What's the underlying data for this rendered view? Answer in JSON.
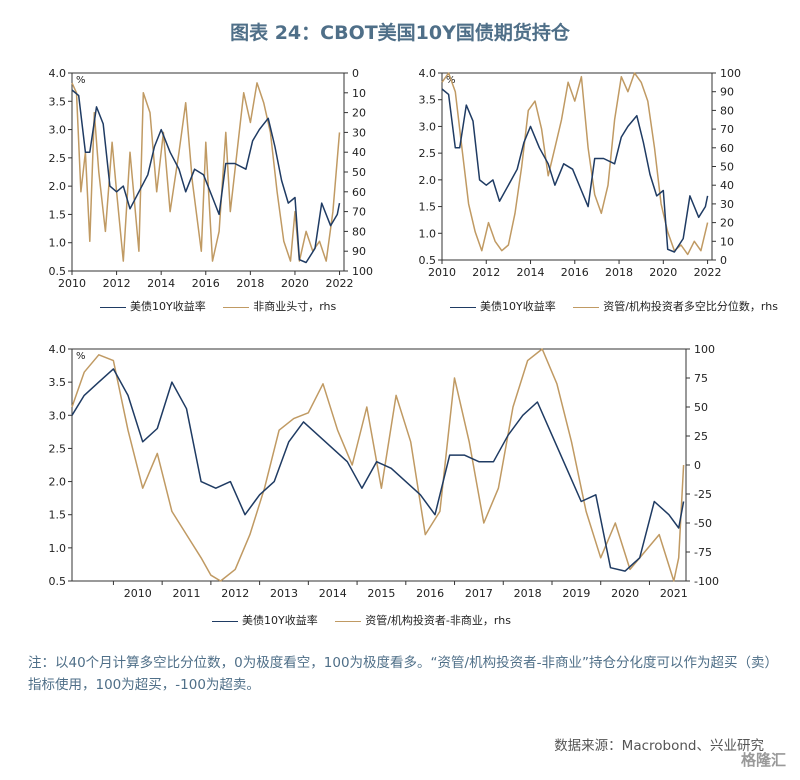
{
  "title": "图表 24：CBOT美国10Y国债期货持仓",
  "note": "注：以40个月计算多空比分位数，0为极度看空，100为极度看多。“资管/机构投资者-非商业”持仓分化度可以作为超买（卖）指标使用，100为超买，-100为超卖。",
  "source": "数据来源：Macrobond、兴业研究",
  "watermark": "格隆汇",
  "colors": {
    "navy": "#1f3b63",
    "tan": "#c09a63"
  },
  "chart_data": [
    {
      "type": "line",
      "id": "chart1",
      "pct_label": "%",
      "ylim": [
        0.5,
        4.0
      ],
      "y_ticks": [
        "0.5",
        "1.0",
        "1.5",
        "2.0",
        "2.5",
        "3.0",
        "3.5",
        "4.0"
      ],
      "y2lim": [
        0,
        100
      ],
      "y2_inverted": true,
      "y2_ticks": [
        "0",
        "10",
        "20",
        "30",
        "40",
        "50",
        "60",
        "70",
        "80",
        "90",
        "100"
      ],
      "xlim": [
        2010,
        2022.2
      ],
      "x_ticks": [
        "2010",
        "2012",
        "2014",
        "2016",
        "2018",
        "2020",
        "2022"
      ],
      "series": [
        {
          "name": "美债10Y收益率",
          "axis": "left",
          "color": "#1f3b63",
          "x": [
            2010.0,
            2010.3,
            2010.6,
            2010.8,
            2011.1,
            2011.4,
            2011.7,
            2012.0,
            2012.3,
            2012.6,
            2013.0,
            2013.4,
            2013.7,
            2014.0,
            2014.4,
            2014.8,
            2015.1,
            2015.5,
            2015.9,
            2016.3,
            2016.6,
            2016.9,
            2017.3,
            2017.8,
            2018.1,
            2018.4,
            2018.8,
            2019.1,
            2019.4,
            2019.7,
            2020.0,
            2020.2,
            2020.5,
            2020.9,
            2021.2,
            2021.6,
            2021.9,
            2022.0
          ],
          "values": [
            3.7,
            3.6,
            2.6,
            2.6,
            3.4,
            3.1,
            2.0,
            1.9,
            2.0,
            1.6,
            1.9,
            2.2,
            2.7,
            3.0,
            2.6,
            2.3,
            1.9,
            2.3,
            2.2,
            1.8,
            1.5,
            2.4,
            2.4,
            2.3,
            2.8,
            3.0,
            3.2,
            2.7,
            2.1,
            1.7,
            1.8,
            0.7,
            0.65,
            0.9,
            1.7,
            1.3,
            1.5,
            1.7
          ]
        },
        {
          "name": "非商业头寸，rhs",
          "axis": "right",
          "color": "#c09a63",
          "x": [
            2010.0,
            2010.2,
            2010.4,
            2010.6,
            2010.8,
            2011.0,
            2011.2,
            2011.5,
            2011.8,
            2012.0,
            2012.3,
            2012.6,
            2013.0,
            2013.2,
            2013.5,
            2013.8,
            2014.1,
            2014.4,
            2014.8,
            2015.1,
            2015.4,
            2015.8,
            2016.0,
            2016.3,
            2016.6,
            2016.9,
            2017.1,
            2017.4,
            2017.7,
            2018.0,
            2018.3,
            2018.6,
            2018.9,
            2019.2,
            2019.5,
            2019.8,
            2020.0,
            2020.2,
            2020.5,
            2020.8,
            2021.1,
            2021.4,
            2021.7,
            2022.0
          ],
          "values": [
            5,
            10,
            60,
            40,
            85,
            20,
            50,
            80,
            35,
            60,
            95,
            40,
            90,
            10,
            20,
            60,
            30,
            70,
            40,
            15,
            55,
            90,
            35,
            95,
            80,
            30,
            70,
            40,
            10,
            25,
            5,
            15,
            30,
            60,
            85,
            95,
            70,
            95,
            80,
            90,
            85,
            95,
            70,
            30
          ]
        }
      ],
      "legend": [
        "美债10Y收益率",
        "非商业头寸，rhs"
      ]
    },
    {
      "type": "line",
      "id": "chart2",
      "pct_label": "%",
      "ylim": [
        0.5,
        4.0
      ],
      "y_ticks": [
        "0.5",
        "1.0",
        "1.5",
        "2.0",
        "2.5",
        "3.0",
        "3.5",
        "4.0"
      ],
      "y2lim": [
        0,
        100
      ],
      "y2_inverted": false,
      "y2_ticks": [
        "0",
        "10",
        "20",
        "30",
        "40",
        "50",
        "60",
        "70",
        "80",
        "90",
        "100"
      ],
      "xlim": [
        2010,
        2022.2
      ],
      "x_ticks": [
        "2010",
        "2012",
        "2014",
        "2016",
        "2018",
        "2020",
        "2022"
      ],
      "series": [
        {
          "name": "美债10Y收益率",
          "axis": "left",
          "color": "#1f3b63",
          "x": [
            2010.0,
            2010.3,
            2010.6,
            2010.8,
            2011.1,
            2011.4,
            2011.7,
            2012.0,
            2012.3,
            2012.6,
            2013.0,
            2013.4,
            2013.7,
            2014.0,
            2014.4,
            2014.8,
            2015.1,
            2015.5,
            2015.9,
            2016.3,
            2016.6,
            2016.9,
            2017.3,
            2017.8,
            2018.1,
            2018.4,
            2018.8,
            2019.1,
            2019.4,
            2019.7,
            2020.0,
            2020.2,
            2020.5,
            2020.9,
            2021.2,
            2021.6,
            2021.9,
            2022.0
          ],
          "values": [
            3.7,
            3.6,
            2.6,
            2.6,
            3.4,
            3.1,
            2.0,
            1.9,
            2.0,
            1.6,
            1.9,
            2.2,
            2.7,
            3.0,
            2.6,
            2.3,
            1.9,
            2.3,
            2.2,
            1.8,
            1.5,
            2.4,
            2.4,
            2.3,
            2.8,
            3.0,
            3.2,
            2.7,
            2.1,
            1.7,
            1.8,
            0.7,
            0.65,
            0.9,
            1.7,
            1.3,
            1.5,
            1.7
          ]
        },
        {
          "name": "资管/机构投资者多空比分位数，rhs",
          "axis": "right",
          "color": "#c09a63",
          "x": [
            2010.0,
            2010.3,
            2010.6,
            2010.9,
            2011.2,
            2011.5,
            2011.8,
            2012.1,
            2012.4,
            2012.7,
            2013.0,
            2013.3,
            2013.6,
            2013.9,
            2014.2,
            2014.5,
            2014.8,
            2015.1,
            2015.4,
            2015.7,
            2016.0,
            2016.3,
            2016.6,
            2016.9,
            2017.2,
            2017.5,
            2017.8,
            2018.1,
            2018.4,
            2018.7,
            2019.0,
            2019.3,
            2019.6,
            2019.9,
            2020.2,
            2020.5,
            2020.8,
            2021.1,
            2021.4,
            2021.7,
            2022.0
          ],
          "values": [
            95,
            100,
            90,
            60,
            30,
            15,
            5,
            20,
            10,
            5,
            8,
            25,
            50,
            80,
            85,
            70,
            45,
            60,
            75,
            95,
            85,
            98,
            60,
            35,
            25,
            40,
            75,
            98,
            90,
            100,
            95,
            85,
            60,
            30,
            15,
            5,
            8,
            3,
            10,
            5,
            20
          ]
        }
      ],
      "legend": [
        "美债10Y收益率",
        "资管/机构投资者多空比分位数，rhs"
      ]
    },
    {
      "type": "line",
      "id": "chart3",
      "pct_label": "%",
      "ylim": [
        0.5,
        4.0
      ],
      "y_ticks": [
        "0.5",
        "1.0",
        "1.5",
        "2.0",
        "2.5",
        "3.0",
        "3.5",
        "4.0"
      ],
      "y2lim": [
        -100,
        100
      ],
      "y2_inverted": false,
      "y2_ticks": [
        "-100",
        "-75",
        "-50",
        "-25",
        "0",
        "25",
        "50",
        "75",
        "100"
      ],
      "xlim": [
        2009.15,
        2021.75
      ],
      "x_ticks": [
        "2010",
        "2011",
        "2012",
        "2013",
        "2014",
        "2015",
        "2016",
        "2017",
        "2018",
        "2019",
        "2020",
        "2021"
      ],
      "series": [
        {
          "name": "美债10Y收益率",
          "axis": "left",
          "color": "#1f3b63",
          "x": [
            2009.15,
            2009.4,
            2009.7,
            2010.0,
            2010.3,
            2010.6,
            2010.9,
            2011.2,
            2011.5,
            2011.8,
            2012.1,
            2012.4,
            2012.7,
            2013.0,
            2013.3,
            2013.6,
            2013.9,
            2014.2,
            2014.5,
            2014.8,
            2015.1,
            2015.4,
            2015.7,
            2016.0,
            2016.3,
            2016.6,
            2016.9,
            2017.2,
            2017.5,
            2017.8,
            2018.1,
            2018.4,
            2018.7,
            2019.0,
            2019.3,
            2019.6,
            2019.9,
            2020.2,
            2020.5,
            2020.8,
            2021.1,
            2021.4,
            2021.6,
            2021.7
          ],
          "values": [
            3.0,
            3.3,
            3.5,
            3.7,
            3.3,
            2.6,
            2.8,
            3.5,
            3.1,
            2.0,
            1.9,
            2.0,
            1.5,
            1.8,
            2.0,
            2.6,
            2.9,
            2.7,
            2.5,
            2.3,
            1.9,
            2.3,
            2.2,
            2.0,
            1.8,
            1.5,
            2.4,
            2.4,
            2.3,
            2.3,
            2.7,
            3.0,
            3.2,
            2.7,
            2.2,
            1.7,
            1.8,
            0.7,
            0.65,
            0.85,
            1.7,
            1.5,
            1.3,
            1.7
          ]
        },
        {
          "name": "资管/机构投资者-非商业，rhs",
          "axis": "right",
          "color": "#c09a63",
          "x": [
            2009.15,
            2009.4,
            2009.7,
            2010.0,
            2010.3,
            2010.6,
            2010.9,
            2011.2,
            2011.5,
            2011.8,
            2012.0,
            2012.2,
            2012.5,
            2012.8,
            2013.1,
            2013.4,
            2013.7,
            2014.0,
            2014.3,
            2014.6,
            2014.9,
            2015.2,
            2015.5,
            2015.8,
            2016.1,
            2016.4,
            2016.7,
            2017.0,
            2017.3,
            2017.6,
            2017.9,
            2018.2,
            2018.5,
            2018.8,
            2019.1,
            2019.4,
            2019.7,
            2020.0,
            2020.3,
            2020.6,
            2020.9,
            2021.2,
            2021.5,
            2021.6,
            2021.7
          ],
          "values": [
            50,
            80,
            95,
            90,
            30,
            -20,
            10,
            -40,
            -60,
            -80,
            -95,
            -100,
            -90,
            -60,
            -20,
            30,
            40,
            45,
            70,
            30,
            0,
            50,
            -20,
            60,
            20,
            -60,
            -40,
            75,
            20,
            -50,
            -20,
            50,
            90,
            100,
            70,
            20,
            -40,
            -80,
            -50,
            -90,
            -75,
            -60,
            -100,
            -80,
            0
          ]
        }
      ],
      "legend": [
        "美债10Y收益率",
        "资管/机构投资者-非商业，rhs"
      ]
    }
  ]
}
